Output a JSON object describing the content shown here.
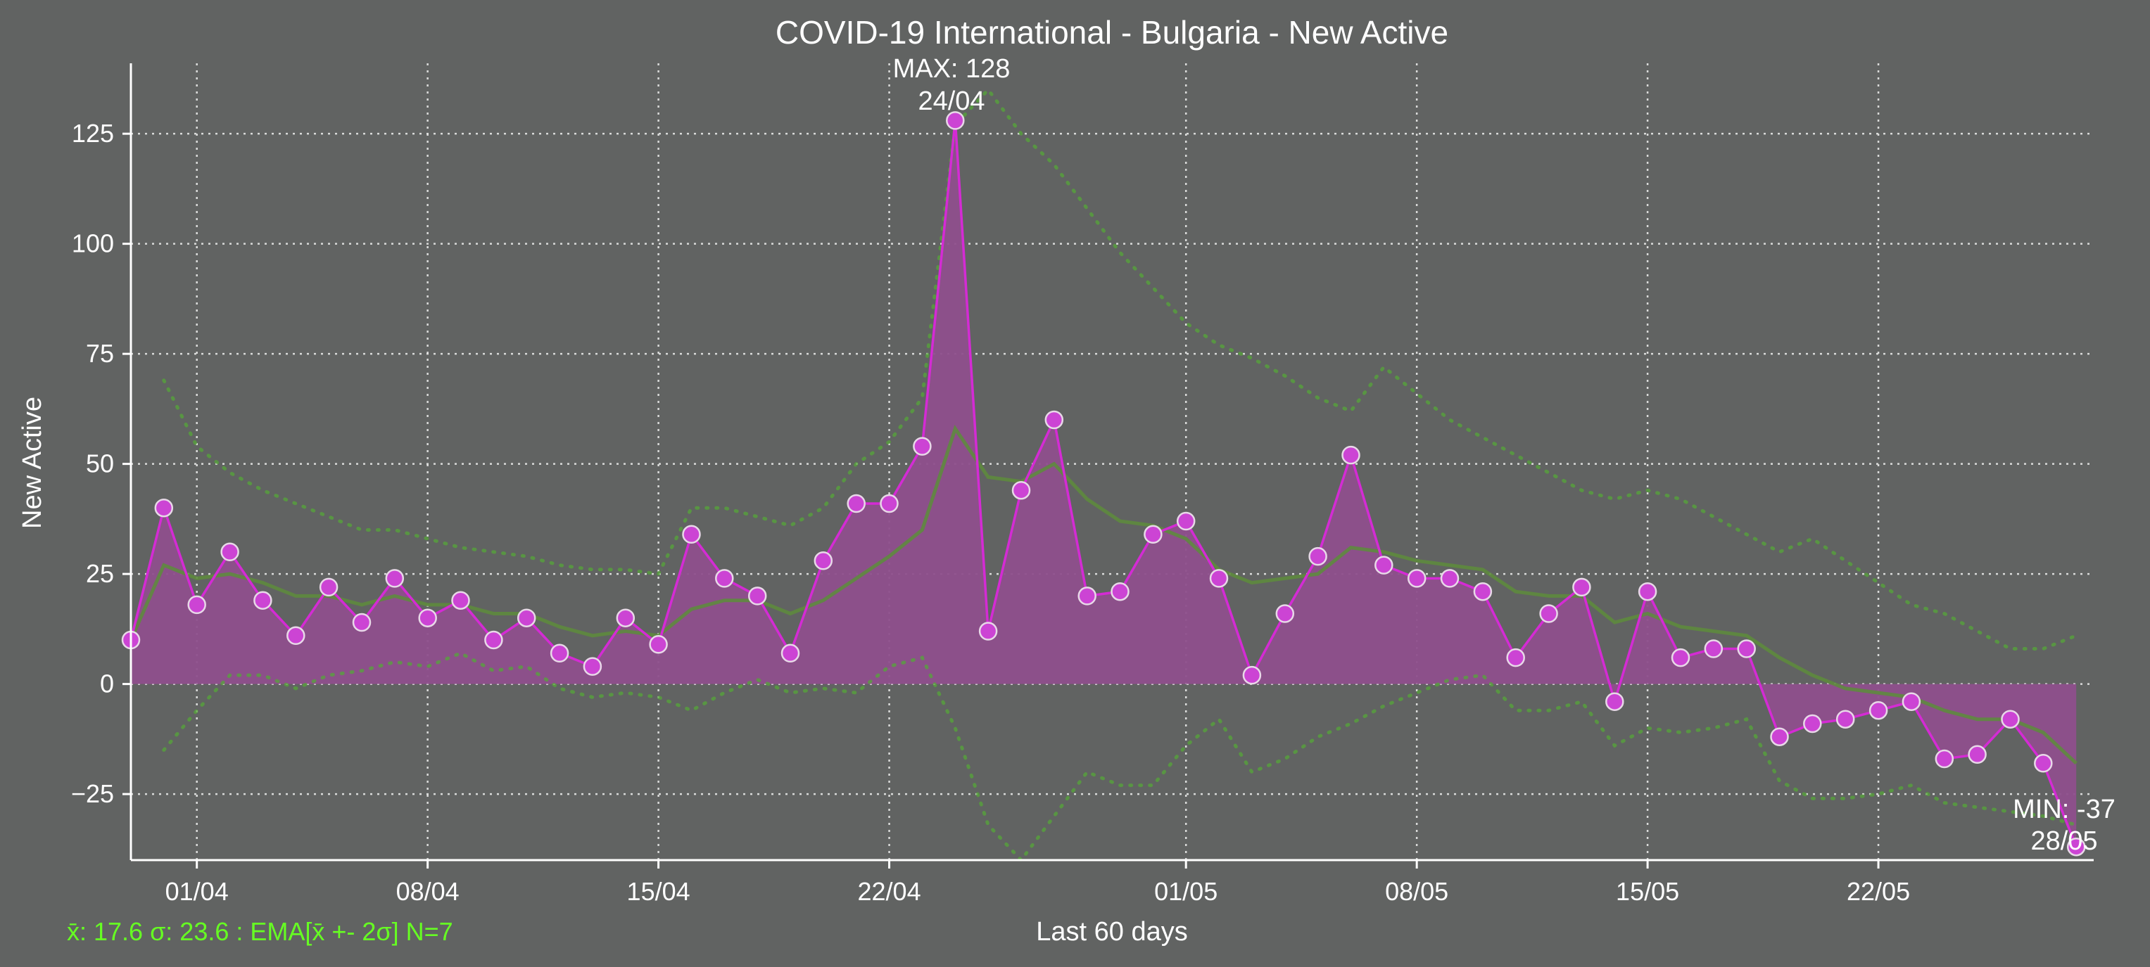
{
  "colors": {
    "background": "#616362",
    "series": "#d42bd4",
    "fill": "#8e4f8c",
    "marker_fill": "#cc44d4",
    "marker_edge": "#e8d8e8",
    "ema": "#5e8a3e",
    "band": "#55a63a",
    "grid": "#e8e8e8",
    "stats_text": "#66ff22"
  },
  "chart_data": {
    "type": "line",
    "title": "COVID-19 International - Bulgaria - New Active",
    "xlabel": "Last 60 days",
    "ylabel": "New Active",
    "ylim": [
      -40,
      141
    ],
    "yticks": [
      -25,
      0,
      25,
      50,
      75,
      100,
      125
    ],
    "ytick_labels": [
      "−25",
      "0",
      "25",
      "50",
      "75",
      "100",
      "125"
    ],
    "xticks": [
      "01/04",
      "08/04",
      "15/04",
      "22/04",
      "01/05",
      "08/05",
      "15/05",
      "22/05"
    ],
    "xtick_day_index": [
      2,
      9,
      16,
      23,
      32,
      39,
      46,
      53
    ],
    "grid": true,
    "day_count": 60,
    "series": [
      {
        "name": "New Active",
        "values": [
          10,
          40,
          18,
          30,
          19,
          11,
          22,
          14,
          24,
          15,
          19,
          10,
          15,
          7,
          4,
          15,
          9,
          34,
          24,
          20,
          7,
          28,
          41,
          41,
          54,
          128,
          12,
          44,
          60,
          20,
          21,
          34,
          37,
          24,
          2,
          16,
          29,
          52,
          27,
          24,
          24,
          21,
          6,
          16,
          22,
          -4,
          21,
          6,
          8,
          8,
          -12,
          -9,
          -8,
          -6,
          -4,
          -17,
          -16,
          -8,
          -18,
          -37
        ]
      },
      {
        "name": "EMA",
        "values": [
          10,
          27,
          24,
          25,
          23,
          20,
          20,
          18,
          20,
          18,
          18,
          16,
          16,
          13,
          11,
          12,
          11,
          17,
          19,
          19,
          16,
          19,
          24,
          29,
          35,
          58,
          47,
          46,
          50,
          42,
          37,
          36,
          33,
          26,
          23,
          24,
          25,
          31,
          30,
          28,
          27,
          26,
          21,
          20,
          20,
          14,
          16,
          13,
          12,
          11,
          6,
          2,
          -1,
          -2,
          -3,
          -6,
          -8,
          -8,
          -11,
          -18
        ]
      },
      {
        "name": "EMA + 2σ",
        "values": [
          null,
          69,
          54,
          48,
          44,
          41,
          38,
          35,
          35,
          33,
          31,
          30,
          29,
          27,
          26,
          26,
          25,
          40,
          40,
          38,
          36,
          40,
          50,
          55,
          65,
          127,
          135,
          125,
          118,
          108,
          98,
          90,
          82,
          77,
          74,
          70,
          65,
          62,
          72,
          66,
          60,
          56,
          52,
          48,
          44,
          42,
          44,
          42,
          38,
          34,
          30,
          33,
          28,
          23,
          18,
          16,
          12,
          8,
          8,
          11
        ]
      },
      {
        "name": "EMA - 2σ",
        "values": [
          null,
          -15,
          -6,
          2,
          2,
          -1,
          2,
          3,
          5,
          4,
          7,
          3,
          4,
          -1,
          -3,
          -2,
          -3,
          -6,
          -2,
          1,
          -2,
          -1,
          -2,
          4,
          6,
          -10,
          -32,
          -40,
          -30,
          -20,
          -23,
          -23,
          -14,
          -8,
          -20,
          -17,
          -12,
          -9,
          -5,
          -2,
          1,
          2,
          -6,
          -6,
          -4,
          -14,
          -10,
          -11,
          -10,
          -8,
          -22,
          -26,
          -26,
          -25,
          -23,
          -27,
          -28,
          -29,
          -30,
          -32
        ]
      }
    ],
    "annotations": {
      "max": {
        "line1": "MAX: 128",
        "line2": "24/04",
        "day_index": 25,
        "value": 128
      },
      "min": {
        "line1": "MIN: -37",
        "line2": "28/05",
        "day_index": 59,
        "value": -37
      }
    },
    "stats_text": "x̄: 17.6 σ: 23.6 : EMA[x̄ +- 2σ] N=7"
  }
}
